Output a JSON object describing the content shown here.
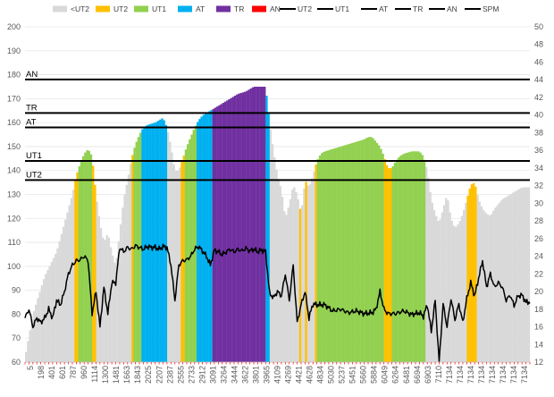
{
  "chart_data": {
    "type": "area",
    "left_axis": {
      "min": 60,
      "max": 200,
      "step": 10,
      "ticks": [
        60,
        70,
        80,
        90,
        100,
        110,
        120,
        130,
        140,
        150,
        160,
        170,
        180,
        190,
        200
      ]
    },
    "right_axis": {
      "min": 12,
      "max": 50,
      "step": 2,
      "ticks": [
        12,
        14,
        16,
        18,
        20,
        22,
        24,
        26,
        28,
        30,
        32,
        34,
        36,
        38,
        40,
        42,
        44,
        46,
        48,
        50
      ]
    },
    "x_tick_labels": [
      "5",
      "198",
      "401",
      "601",
      "787",
      "960",
      "1114",
      "1300",
      "1481",
      "1663",
      "1843",
      "2025",
      "2207",
      "2387",
      "2555",
      "2733",
      "2912",
      "3091",
      "3264",
      "3444",
      "3622",
      "3801",
      "3965",
      "4109",
      "4269",
      "4421",
      "4628",
      "4834",
      "5030",
      "5237",
      "5451",
      "5660",
      "5884",
      "6049",
      "6264",
      "6481",
      "6694",
      "6903",
      "7110",
      "7134",
      "7134",
      "7134",
      "7134",
      "7134",
      "7134",
      "7134",
      "7134"
    ],
    "legend": [
      {
        "label": "<UT2",
        "kind": "area",
        "color": "#d9d9d9"
      },
      {
        "label": "UT2",
        "kind": "area",
        "color": "#ffc000"
      },
      {
        "label": "UT1",
        "kind": "area",
        "color": "#92d050"
      },
      {
        "label": "AT",
        "kind": "area",
        "color": "#00b0f0"
      },
      {
        "label": "TR",
        "kind": "area",
        "color": "#7030a0"
      },
      {
        "label": "AN",
        "kind": "area",
        "color": "#ff0000"
      },
      {
        "label": "UT2",
        "kind": "line",
        "color": "#000000"
      },
      {
        "label": "UT1",
        "kind": "line",
        "color": "#000000"
      },
      {
        "label": "AT",
        "kind": "line",
        "color": "#000000"
      },
      {
        "label": "TR",
        "kind": "line",
        "color": "#000000"
      },
      {
        "label": "AN",
        "kind": "line",
        "color": "#000000"
      },
      {
        "label": "SPM",
        "kind": "line",
        "color": "#000000"
      }
    ],
    "zone_thresholds": [
      {
        "label": "AN",
        "value": 178
      },
      {
        "label": "TR",
        "value": 164
      },
      {
        "label": "AT",
        "value": 158
      },
      {
        "label": "UT1",
        "value": 144
      },
      {
        "label": "UT2",
        "value": 136
      }
    ],
    "colors": {
      "below_ut2": "#d9d9d9",
      "ut2": "#ffc000",
      "ut1": "#92d050",
      "at": "#00b0f0",
      "tr": "#7030a0",
      "an": "#ff0000",
      "lines": "#000000"
    },
    "heart_rate_profile": [
      [
        0,
        62
      ],
      [
        2,
        80
      ],
      [
        5,
        96
      ],
      [
        8,
        106
      ],
      [
        10,
        118
      ],
      [
        12,
        130
      ],
      [
        13,
        138
      ],
      [
        14,
        143
      ],
      [
        15,
        147
      ],
      [
        16,
        149
      ],
      [
        17,
        146
      ],
      [
        18,
        130
      ],
      [
        19,
        118
      ],
      [
        20,
        110
      ],
      [
        21,
        114
      ],
      [
        22,
        106
      ],
      [
        23,
        100
      ],
      [
        24,
        114
      ],
      [
        25,
        128
      ],
      [
        26,
        136
      ],
      [
        27,
        145
      ],
      [
        28,
        151
      ],
      [
        29,
        155
      ],
      [
        30,
        158
      ],
      [
        31,
        159
      ],
      [
        33,
        160
      ],
      [
        34,
        161
      ],
      [
        35,
        162
      ],
      [
        36,
        158
      ],
      [
        37,
        150
      ],
      [
        38,
        140
      ],
      [
        39,
        140
      ],
      [
        40,
        145
      ],
      [
        41,
        150
      ],
      [
        42,
        154
      ],
      [
        43,
        158
      ],
      [
        44,
        161
      ],
      [
        45,
        163
      ],
      [
        47,
        165
      ],
      [
        48,
        166
      ],
      [
        49,
        167
      ],
      [
        50,
        168
      ],
      [
        51,
        169
      ],
      [
        52,
        170
      ],
      [
        53,
        171
      ],
      [
        54,
        172
      ],
      [
        56,
        173
      ],
      [
        57,
        174
      ],
      [
        58,
        175
      ],
      [
        61,
        175
      ],
      [
        62,
        160
      ],
      [
        63,
        148
      ],
      [
        64,
        138
      ],
      [
        65,
        132
      ],
      [
        66,
        120
      ],
      [
        67,
        126
      ],
      [
        68,
        134
      ],
      [
        69,
        130
      ],
      [
        70,
        122
      ],
      [
        71,
        136
      ],
      [
        72,
        133
      ],
      [
        73,
        138
      ],
      [
        74,
        144
      ],
      [
        75,
        147
      ],
      [
        76,
        148
      ],
      [
        78,
        149
      ],
      [
        80,
        150
      ],
      [
        82,
        151
      ],
      [
        84,
        152
      ],
      [
        86,
        153
      ],
      [
        87,
        154
      ],
      [
        88,
        154
      ],
      [
        89,
        152
      ],
      [
        90,
        150
      ],
      [
        91,
        146
      ],
      [
        92,
        141
      ],
      [
        93,
        141
      ],
      [
        94,
        144
      ],
      [
        95,
        146
      ],
      [
        96,
        147
      ],
      [
        98,
        148
      ],
      [
        99,
        148
      ],
      [
        100,
        148
      ],
      [
        101,
        146
      ],
      [
        102,
        140
      ],
      [
        103,
        128
      ],
      [
        104,
        122
      ],
      [
        105,
        118
      ],
      [
        106,
        124
      ],
      [
        107,
        130
      ],
      [
        108,
        120
      ],
      [
        109,
        116
      ],
      [
        110,
        118
      ],
      [
        111,
        122
      ],
      [
        112,
        128
      ],
      [
        113,
        134
      ],
      [
        114,
        135
      ],
      [
        115,
        128
      ],
      [
        116,
        124
      ],
      [
        117,
        122
      ],
      [
        118,
        121
      ],
      [
        119,
        124
      ],
      [
        120,
        126
      ],
      [
        121,
        128
      ],
      [
        122,
        129
      ],
      [
        123,
        130
      ],
      [
        124,
        131
      ],
      [
        125,
        132
      ],
      [
        126,
        133
      ],
      [
        127,
        133
      ]
    ],
    "zone_segments": [
      {
        "zone": "ut2",
        "from": 12.5,
        "to": 13.5
      },
      {
        "zone": "ut1",
        "from": 13.5,
        "to": 17.2
      },
      {
        "zone": "ut2",
        "from": 17.2,
        "to": 17.8
      },
      {
        "zone": "ut2",
        "from": 26.8,
        "to": 27.5
      },
      {
        "zone": "ut1",
        "from": 27.5,
        "to": 29.5
      },
      {
        "zone": "at",
        "from": 29.5,
        "to": 35.8
      },
      {
        "zone": "ut2",
        "from": 39.6,
        "to": 40.3
      },
      {
        "zone": "ut1",
        "from": 40.3,
        "to": 43.3
      },
      {
        "zone": "at",
        "from": 43.3,
        "to": 47.7
      },
      {
        "zone": "tr",
        "from": 47.7,
        "to": 61.2
      },
      {
        "zone": "at",
        "from": 61.2,
        "to": 61.8
      },
      {
        "zone": "ut2",
        "from": 69.4,
        "to": 69.9
      },
      {
        "zone": "ut2",
        "from": 71.1,
        "to": 71.5
      },
      {
        "zone": "ut2",
        "from": 73.6,
        "to": 74.2
      },
      {
        "zone": "ut1",
        "from": 74.2,
        "to": 90.9
      },
      {
        "zone": "ut2",
        "from": 90.9,
        "to": 92.9
      },
      {
        "zone": "ut1",
        "from": 92.9,
        "to": 101.3
      },
      {
        "zone": "ut2",
        "from": 112.2,
        "to": 114.5
      }
    ],
    "spm_profile": [
      [
        0,
        17
      ],
      [
        1,
        18
      ],
      [
        2,
        16
      ],
      [
        3,
        17
      ],
      [
        4,
        16.5
      ],
      [
        5,
        17
      ],
      [
        6,
        18
      ],
      [
        7,
        17
      ],
      [
        8,
        19
      ],
      [
        9,
        18.5
      ],
      [
        10,
        20
      ],
      [
        11,
        22
      ],
      [
        12,
        23
      ],
      [
        13,
        23.5
      ],
      [
        14,
        23.6
      ],
      [
        15,
        24
      ],
      [
        16,
        23.5
      ],
      [
        17,
        17.5
      ],
      [
        18,
        20
      ],
      [
        19,
        16
      ],
      [
        20,
        20.5
      ],
      [
        21,
        17.5
      ],
      [
        22,
        21
      ],
      [
        23,
        21
      ],
      [
        24,
        25
      ],
      [
        25,
        24.5
      ],
      [
        26,
        25
      ],
      [
        27,
        24.8
      ],
      [
        28,
        25.2
      ],
      [
        29,
        25
      ],
      [
        30,
        24.8
      ],
      [
        31,
        25.1
      ],
      [
        32,
        25
      ],
      [
        33,
        25
      ],
      [
        34,
        24.8
      ],
      [
        35,
        25.1
      ],
      [
        36,
        25
      ],
      [
        37,
        23
      ],
      [
        38,
        19
      ],
      [
        39,
        23
      ],
      [
        40,
        23.5
      ],
      [
        41,
        23.6
      ],
      [
        42,
        24
      ],
      [
        43,
        24.8
      ],
      [
        44,
        25.1
      ],
      [
        45,
        24.6
      ],
      [
        46,
        24
      ],
      [
        47,
        23
      ],
      [
        48,
        24.7
      ],
      [
        49,
        24.5
      ],
      [
        50,
        24.2
      ],
      [
        51,
        24.5
      ],
      [
        52,
        24.8
      ],
      [
        53,
        24.5
      ],
      [
        54,
        24.8
      ],
      [
        55,
        24.6
      ],
      [
        56,
        24.9
      ],
      [
        57,
        24.6
      ],
      [
        58,
        24.8
      ],
      [
        59,
        24.5
      ],
      [
        60,
        24.7
      ],
      [
        61,
        24.5
      ],
      [
        62,
        19.8
      ],
      [
        63,
        19.3
      ],
      [
        64,
        20
      ],
      [
        65,
        19.5
      ],
      [
        66,
        22
      ],
      [
        67,
        19
      ],
      [
        68,
        23
      ],
      [
        69,
        16.5
      ],
      [
        70,
        18.5
      ],
      [
        71,
        20
      ],
      [
        72,
        17
      ],
      [
        73,
        18.6
      ],
      [
        74,
        18.5
      ],
      [
        76,
        18.5
      ],
      [
        78,
        17.8
      ],
      [
        80,
        18
      ],
      [
        82,
        17.6
      ],
      [
        84,
        17.8
      ],
      [
        86,
        17.5
      ],
      [
        88,
        17.6
      ],
      [
        89,
        18
      ],
      [
        90,
        20
      ],
      [
        91,
        18
      ],
      [
        92,
        17.5
      ],
      [
        94,
        17.5
      ],
      [
        96,
        17.8
      ],
      [
        98,
        17.4
      ],
      [
        100,
        17.6
      ],
      [
        101,
        17.2
      ],
      [
        102,
        18.5
      ],
      [
        103,
        15.5
      ],
      [
        104,
        19
      ],
      [
        105,
        12
      ],
      [
        106,
        18.6
      ],
      [
        107,
        16
      ],
      [
        108,
        19.2
      ],
      [
        109,
        16.8
      ],
      [
        110,
        18.6
      ],
      [
        111,
        16.5
      ],
      [
        112,
        19.2
      ],
      [
        113,
        21
      ],
      [
        114,
        19.5
      ],
      [
        115,
        21.5
      ],
      [
        116,
        23.5
      ],
      [
        117,
        20.5
      ],
      [
        118,
        22
      ],
      [
        119,
        20.5
      ],
      [
        120,
        21
      ],
      [
        121,
        20.5
      ],
      [
        122,
        19
      ],
      [
        123,
        19.6
      ],
      [
        124,
        18.4
      ],
      [
        125,
        19.5
      ],
      [
        126,
        19.6
      ],
      [
        127,
        18.8
      ]
    ]
  }
}
